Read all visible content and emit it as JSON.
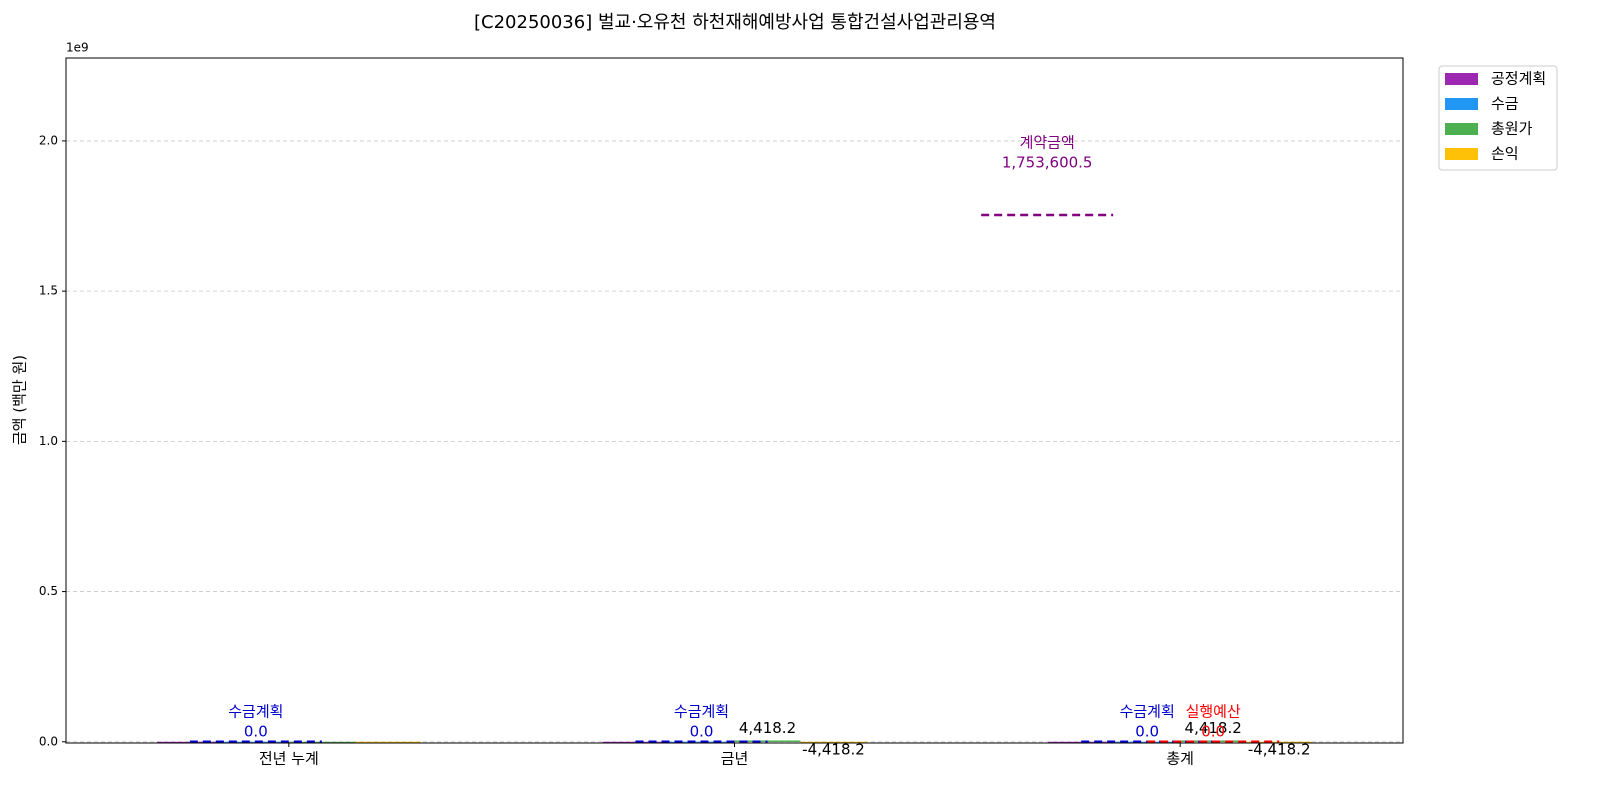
{
  "chart_data": {
    "type": "bar",
    "title": "[C20250036] 벌교·오유천 하천재해예방사업 통합건설사업관리용역",
    "y_label": "금액 (백만 원)",
    "y_offset_label": "1e9",
    "categories": [
      "전년 누계",
      "금년",
      "총계"
    ],
    "series": [
      {
        "name": "공정계획",
        "color": "#9c27b0",
        "values": [
          0,
          0,
          0
        ],
        "value_labels": [
          null,
          null,
          null
        ]
      },
      {
        "name": "수금",
        "color": "#2196f3",
        "values": [
          0,
          0,
          0
        ],
        "value_labels": [
          null,
          null,
          null
        ]
      },
      {
        "name": "총원가",
        "color": "#4caf50",
        "values": [
          0,
          4418200,
          4418200
        ],
        "value_labels": [
          null,
          "4,418.2",
          "4,418.2"
        ]
      },
      {
        "name": "손익",
        "color": "#ffc107",
        "values": [
          0,
          -4418200,
          -4418200
        ],
        "value_labels": [
          null,
          "-4,418.2",
          "-4,418.2"
        ]
      }
    ],
    "reference_lines": [
      {
        "name": "수금계획",
        "color": "#0000cd",
        "values": [
          0,
          0,
          0
        ],
        "value_labels": [
          "0.0",
          "0.0",
          "0.0"
        ]
      },
      {
        "name": "계약금액",
        "color": "#800080",
        "values": [
          null,
          null,
          1753600500
        ],
        "value_labels": [
          null,
          null,
          "1,753,600.5"
        ]
      },
      {
        "name": "실행예산",
        "color": "#ff0000",
        "values": [
          null,
          null,
          0
        ],
        "value_labels": [
          null,
          null,
          "0.0"
        ]
      }
    ],
    "ylim": [
      -4000000,
      2276000000
    ],
    "yticks": [
      {
        "value": 0,
        "label": "0.0"
      },
      {
        "value": 500000000,
        "label": "0.5"
      },
      {
        "value": 1000000000,
        "label": "1.0"
      },
      {
        "value": 1500000000,
        "label": "1.5"
      },
      {
        "value": 2000000000,
        "label": "2.0"
      }
    ],
    "grid": true,
    "legend": "upper right outside"
  }
}
